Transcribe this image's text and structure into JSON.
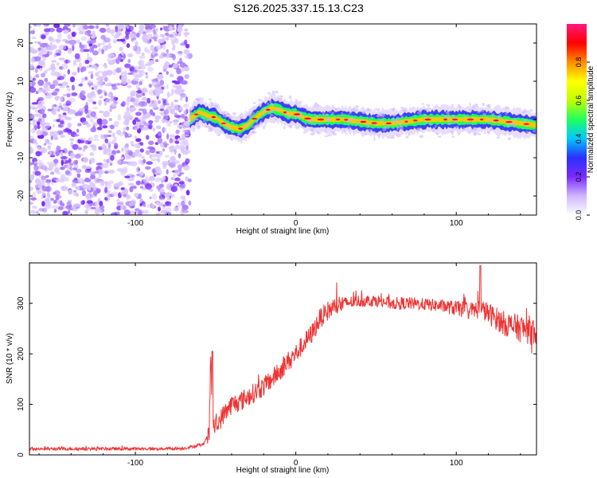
{
  "title": "S126.2025.337.15.13.C23",
  "chart_data": [
    {
      "type": "heatmap",
      "title": "S126.2025.337.15.13.C23",
      "xlabel": "Height of straight line (km)",
      "ylabel": "Frequency (Hz)",
      "xlim": [
        -166,
        150
      ],
      "ylim": [
        -25,
        25
      ],
      "xticks": [
        -100,
        0,
        100
      ],
      "xtick_labels": [
        "-100",
        "0",
        "100"
      ],
      "yticks": [
        -20,
        -10,
        0,
        10,
        20
      ],
      "ytick_labels": [
        "-20",
        "-10",
        "0",
        "10",
        "20"
      ],
      "noise_region_x": [
        -166,
        -66
      ],
      "signal_start_x": -66,
      "signal_track": {
        "x": [
          -66,
          -60,
          -55,
          -50,
          -45,
          -40,
          -35,
          -30,
          -25,
          -20,
          -15,
          -10,
          -5,
          0,
          5,
          10,
          20,
          30,
          40,
          50,
          60,
          70,
          80,
          90,
          100,
          110,
          120,
          130,
          140,
          150
        ],
        "freq": [
          0,
          2,
          1,
          0.5,
          -1,
          -2,
          -2.5,
          -1.5,
          0.5,
          2,
          3,
          2.5,
          1.5,
          1.5,
          0.5,
          0,
          0,
          0,
          -0.5,
          -1,
          -1,
          -0.5,
          0,
          0,
          0,
          0,
          0,
          -0.5,
          -1,
          -1.5
        ]
      },
      "colorbar": {
        "label": "Normalized spectral amplitude",
        "range": [
          0,
          1
        ],
        "ticks": [
          0.0,
          0.2,
          0.4,
          0.6,
          0.8
        ],
        "tick_labels": [
          "0.0",
          "0.2",
          "0.4",
          "0.6",
          "0.8"
        ],
        "colors": [
          "#ffffff",
          "#cfb6ff",
          "#7a2bff",
          "#2a30ff",
          "#00c8ff",
          "#20ff60",
          "#c0ff00",
          "#ffff00",
          "#ff8c00",
          "#ff0000",
          "#ff1a80"
        ]
      }
    },
    {
      "type": "line",
      "xlabel": "Height of straight line (km)",
      "ylabel": "SNR (10 * v/v)",
      "xlim": [
        -166,
        150
      ],
      "ylim": [
        0,
        380
      ],
      "xticks": [
        -100,
        0,
        100
      ],
      "xtick_labels": [
        "-100",
        "0",
        "100"
      ],
      "yticks": [
        0,
        100,
        200,
        300
      ],
      "ytick_labels": [
        "0",
        "100",
        "200",
        "300"
      ],
      "color": "#ee3333",
      "series": [
        {
          "name": "SNR",
          "x": [
            -166,
            -150,
            -130,
            -110,
            -90,
            -70,
            -58,
            -54,
            -53,
            -52,
            -50,
            -45,
            -40,
            -35,
            -30,
            -25,
            -20,
            -15,
            -10,
            -5,
            0,
            5,
            10,
            15,
            20,
            25,
            30,
            40,
            50,
            60,
            70,
            80,
            90,
            100,
            110,
            115,
            120,
            130,
            140,
            150
          ],
          "y": [
            12,
            12,
            12,
            12,
            12,
            13,
            20,
            40,
            200,
            60,
            55,
            80,
            100,
            105,
            115,
            125,
            135,
            150,
            165,
            185,
            200,
            220,
            240,
            270,
            285,
            295,
            300,
            305,
            305,
            300,
            300,
            298,
            295,
            290,
            285,
            290,
            280,
            260,
            250,
            245
          ],
          "spikes": [
            {
              "x": -52,
              "y": 205
            },
            {
              "x": 115,
              "y": 375
            }
          ]
        }
      ]
    }
  ]
}
